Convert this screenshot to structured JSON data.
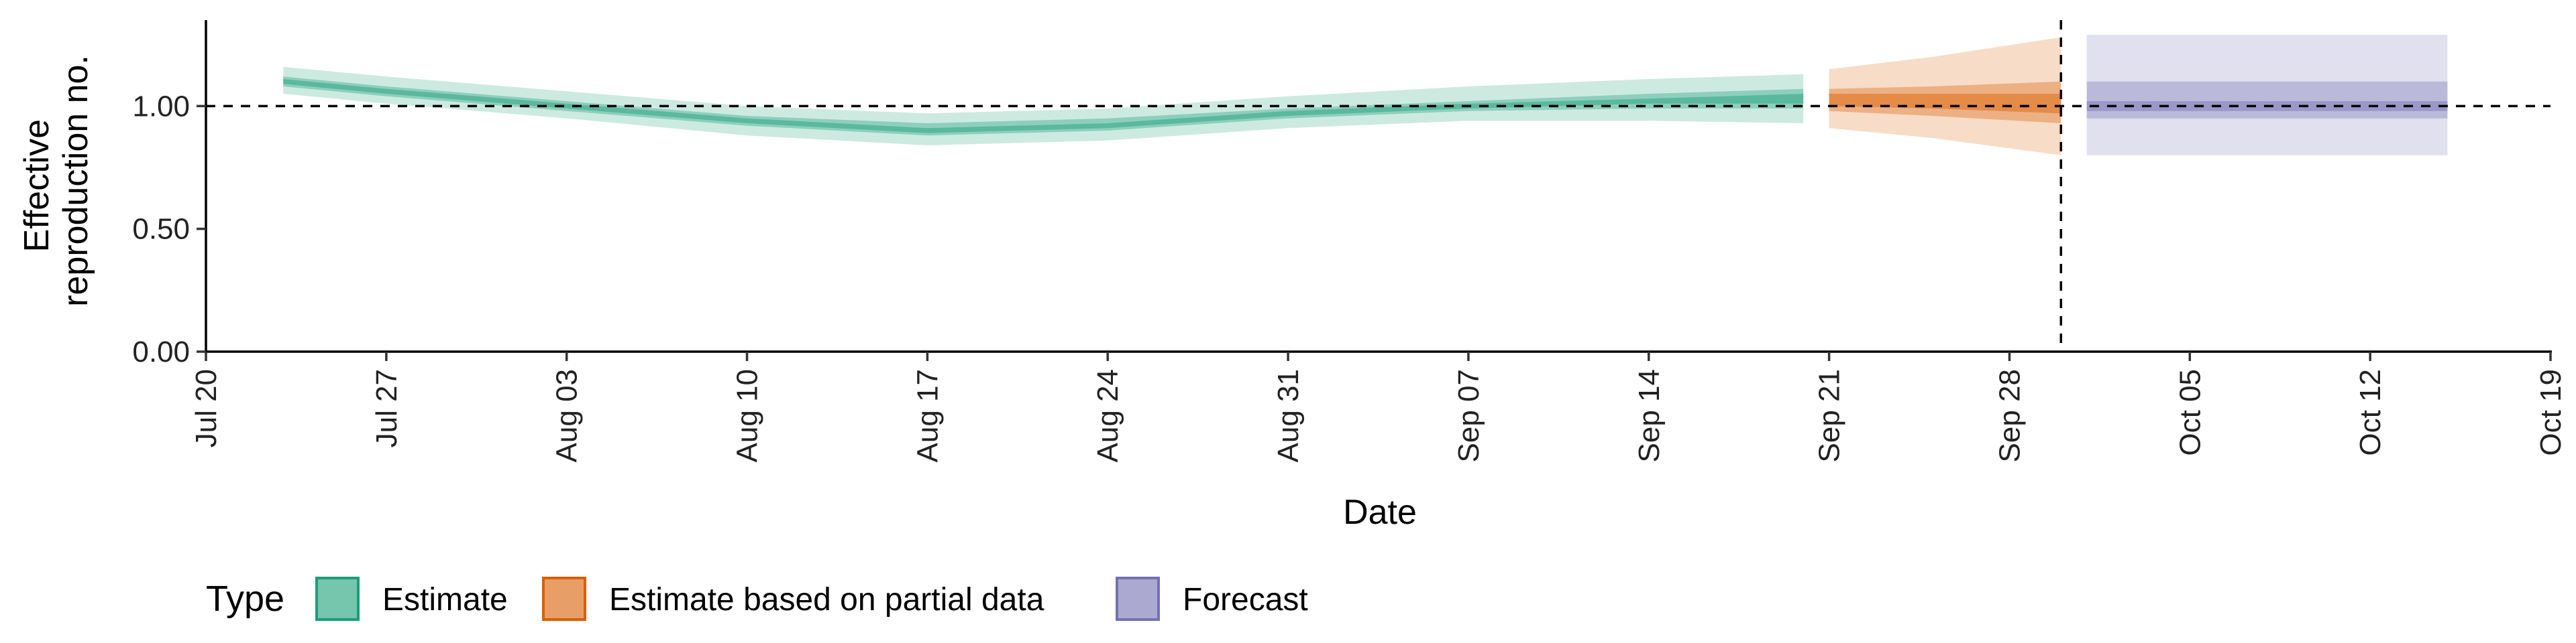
{
  "chart_data": {
    "type": "area",
    "xlabel": "Date",
    "ylabel_lines": [
      "Effective",
      "reproduction no."
    ],
    "x_ticks": [
      "Jul 20",
      "Jul 27",
      "Aug 03",
      "Aug 10",
      "Aug 17",
      "Aug 24",
      "Aug 31",
      "Sep 07",
      "Sep 14",
      "Sep 21",
      "Sep 28",
      "Oct 05",
      "Oct 12",
      "Oct 19"
    ],
    "x_range": [
      "2020-07-20",
      "2020-10-19"
    ],
    "y_ticks": [
      "0.00",
      "0.50",
      "1.00"
    ],
    "ylim": [
      0,
      1.35
    ],
    "reference_line_y": 1.0,
    "reference_line_x": "2020-09-30",
    "legend_title": "Type",
    "legend_position": "bottom-left",
    "series": [
      {
        "name": "Estimate",
        "color": "#1b9e77",
        "points": [
          {
            "date": "2020-07-23",
            "median": 1.1,
            "lo20": 1.09,
            "hi20": 1.11,
            "lo50": 1.08,
            "hi50": 1.12,
            "lo90": 1.05,
            "hi90": 1.16
          },
          {
            "date": "2020-07-27",
            "median": 1.06,
            "lo20": 1.05,
            "hi20": 1.07,
            "lo50": 1.04,
            "hi50": 1.08,
            "lo90": 1.01,
            "hi90": 1.12
          },
          {
            "date": "2020-08-03",
            "median": 1.0,
            "lo20": 0.99,
            "hi20": 1.01,
            "lo50": 0.98,
            "hi50": 1.02,
            "lo90": 0.95,
            "hi90": 1.06
          },
          {
            "date": "2020-08-10",
            "median": 0.94,
            "lo20": 0.93,
            "hi20": 0.95,
            "lo50": 0.92,
            "hi50": 0.96,
            "lo90": 0.88,
            "hi90": 1.0
          },
          {
            "date": "2020-08-17",
            "median": 0.9,
            "lo20": 0.89,
            "hi20": 0.91,
            "lo50": 0.88,
            "hi50": 0.93,
            "lo90": 0.84,
            "hi90": 0.97
          },
          {
            "date": "2020-08-24",
            "median": 0.92,
            "lo20": 0.91,
            "hi20": 0.93,
            "lo50": 0.9,
            "hi50": 0.95,
            "lo90": 0.86,
            "hi90": 0.99
          },
          {
            "date": "2020-08-31",
            "median": 0.97,
            "lo20": 0.96,
            "hi20": 0.98,
            "lo50": 0.95,
            "hi50": 0.99,
            "lo90": 0.91,
            "hi90": 1.04
          },
          {
            "date": "2020-09-07",
            "median": 1.0,
            "lo20": 0.99,
            "hi20": 1.01,
            "lo50": 0.98,
            "hi50": 1.02,
            "lo90": 0.94,
            "hi90": 1.08
          },
          {
            "date": "2020-09-14",
            "median": 1.02,
            "lo20": 1.01,
            "hi20": 1.03,
            "lo50": 0.99,
            "hi50": 1.05,
            "lo90": 0.94,
            "hi90": 1.11
          },
          {
            "date": "2020-09-20",
            "median": 1.03,
            "lo20": 1.01,
            "hi20": 1.05,
            "lo50": 0.99,
            "hi50": 1.07,
            "lo90": 0.93,
            "hi90": 1.13
          }
        ]
      },
      {
        "name": "Estimate based on partial data",
        "color": "#d95f02",
        "points": [
          {
            "date": "2020-09-21",
            "median": 1.03,
            "lo20": 1.0,
            "hi20": 1.05,
            "lo50": 0.98,
            "hi50": 1.07,
            "lo90": 0.91,
            "hi90": 1.15
          },
          {
            "date": "2020-09-25",
            "median": 1.02,
            "lo20": 0.99,
            "hi20": 1.05,
            "lo50": 0.96,
            "hi50": 1.08,
            "lo90": 0.87,
            "hi90": 1.2
          },
          {
            "date": "2020-09-30",
            "median": 1.01,
            "lo20": 0.97,
            "hi20": 1.05,
            "lo50": 0.93,
            "hi50": 1.1,
            "lo90": 0.8,
            "hi90": 1.28
          }
        ]
      },
      {
        "name": "Forecast",
        "color": "#7570b3",
        "points": [
          {
            "date": "2020-10-01",
            "median": 1.0,
            "lo20": 0.98,
            "hi20": 1.02,
            "lo50": 0.95,
            "hi50": 1.1,
            "lo90": 0.8,
            "hi90": 1.29
          },
          {
            "date": "2020-10-15",
            "median": 1.0,
            "lo20": 0.98,
            "hi20": 1.02,
            "lo50": 0.95,
            "hi50": 1.1,
            "lo90": 0.8,
            "hi90": 1.29
          }
        ]
      }
    ]
  }
}
